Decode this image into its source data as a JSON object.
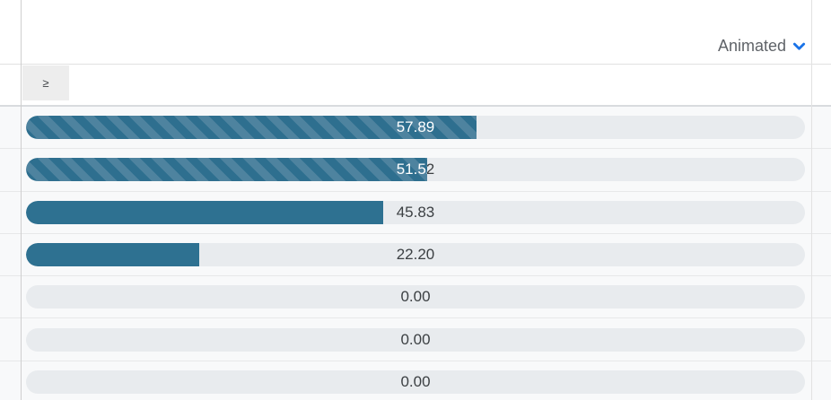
{
  "header": {
    "dropdown_label": "Animated"
  },
  "filter": {
    "operator": "≥"
  },
  "colors": {
    "bar_solid": "#2e7191",
    "bar_stripe_dark": "#2e6f8f",
    "bar_stripe_light": "#4e839f",
    "track": "#e8ebee",
    "chevron_blue": "#1a73e8"
  },
  "rows": [
    {
      "value": "57.89",
      "percent": 57.89,
      "striped": true
    },
    {
      "value": "51.52",
      "percent": 51.52,
      "striped": true
    },
    {
      "value": "45.83",
      "percent": 45.83,
      "striped": false
    },
    {
      "value": "22.20",
      "percent": 22.2,
      "striped": false
    },
    {
      "value": "0.00",
      "percent": 0,
      "striped": false
    },
    {
      "value": "0.00",
      "percent": 0,
      "striped": false
    },
    {
      "value": "0.00",
      "percent": 0,
      "striped": false
    }
  ]
}
